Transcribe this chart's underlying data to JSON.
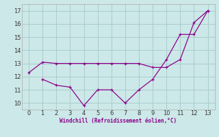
{
  "line1_x": [
    0,
    1,
    2,
    3,
    4,
    5,
    6,
    7,
    8,
    9,
    10,
    11,
    12,
    13
  ],
  "line1_y": [
    12.3,
    13.1,
    13.0,
    13.0,
    13.0,
    13.0,
    13.0,
    13.0,
    13.0,
    12.7,
    12.7,
    13.3,
    16.1,
    17.0
  ],
  "line2_x": [
    1,
    2,
    3,
    4,
    5,
    6,
    7,
    8,
    9,
    10,
    11,
    12,
    13
  ],
  "line2_y": [
    11.8,
    11.35,
    11.2,
    9.8,
    11.0,
    11.0,
    10.0,
    11.0,
    11.8,
    13.3,
    15.2,
    15.2,
    17.0
  ],
  "line_color": "#8B008B",
  "bg_color": "#cce8e8",
  "grid_color": "#aacccc",
  "xlabel": "Windchill (Refroidissement éolien,°C)",
  "xlabel_color": "#8B008B",
  "xlim": [
    -0.5,
    13.5
  ],
  "ylim": [
    9.5,
    17.5
  ],
  "yticks": [
    10,
    11,
    12,
    13,
    14,
    15,
    16,
    17
  ],
  "xticks": [
    0,
    1,
    2,
    3,
    4,
    5,
    6,
    7,
    8,
    9,
    10,
    11,
    12,
    13
  ]
}
